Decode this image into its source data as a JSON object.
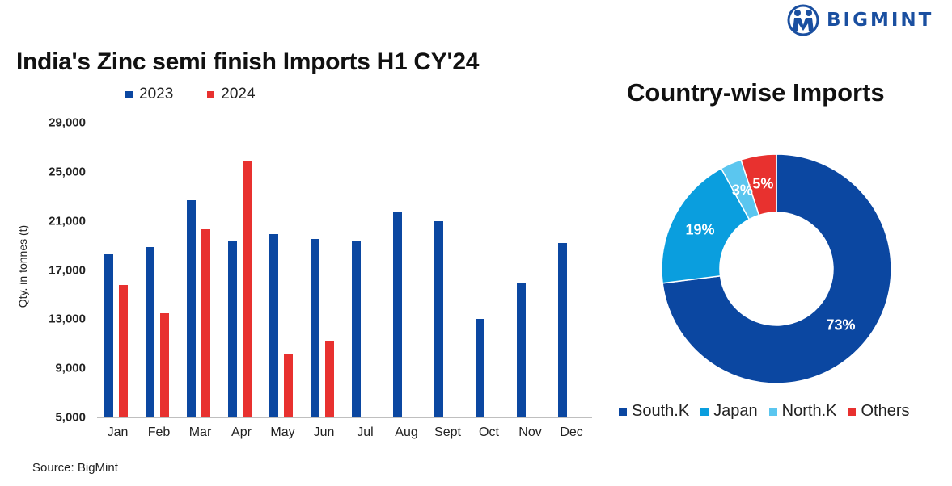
{
  "brand": {
    "name": "BIGMINT",
    "color": "#1a4fa0"
  },
  "bar_chart": {
    "title": "India's Zinc semi finish Imports H1 CY'24",
    "y_axis_title": "Qty. in tonnes (t)",
    "y_ticks": [
      "29,000",
      "25,000",
      "21,000",
      "17,000",
      "13,000",
      "9,000",
      "5,000"
    ],
    "legend": [
      {
        "label": "2023",
        "color": "#0b47a1"
      },
      {
        "label": "2024",
        "color": "#e8312f"
      }
    ],
    "source": "Source: BigMint"
  },
  "pie_chart": {
    "title": "Country-wise Imports",
    "legend": [
      {
        "label": "South.K",
        "color": "#0b47a1"
      },
      {
        "label": "Japan",
        "color": "#0a9ede"
      },
      {
        "label": "North.K",
        "color": "#5bc6ef"
      },
      {
        "label": "Others",
        "color": "#e8312f"
      }
    ],
    "labels": [
      "73%",
      "19%",
      "3%",
      "5%"
    ]
  },
  "chart_data": [
    {
      "type": "bar",
      "title": "India's Zinc semi finish Imports H1 CY'24",
      "xlabel": "",
      "ylabel": "Qty. in tonnes (t)",
      "ylim": [
        5000,
        29000
      ],
      "yticks": [
        5000,
        9000,
        13000,
        17000,
        21000,
        25000,
        29000
      ],
      "grid": false,
      "legend_position": "top",
      "categories": [
        "Jan",
        "Feb",
        "Mar",
        "Apr",
        "May",
        "Jun",
        "Jul",
        "Aug",
        "Sept",
        "Oct",
        "Nov",
        "Dec"
      ],
      "series": [
        {
          "name": "2023",
          "color": "#0b47a1",
          "values": [
            18300,
            18900,
            22700,
            19400,
            19900,
            19500,
            19400,
            21800,
            21000,
            13000,
            15900,
            19200
          ]
        },
        {
          "name": "2024",
          "color": "#e8312f",
          "values": [
            15800,
            13500,
            20300,
            25900,
            10200,
            11200,
            null,
            null,
            null,
            null,
            null,
            null
          ]
        }
      ]
    },
    {
      "type": "pie",
      "subtype": "donut",
      "title": "Country-wise Imports",
      "legend_position": "bottom",
      "categories": [
        "South.K",
        "Japan",
        "North.K",
        "Others"
      ],
      "values": [
        73,
        19,
        3,
        5
      ],
      "labels": [
        "73%",
        "19%",
        "3%",
        "5%"
      ],
      "colors": [
        "#0b47a1",
        "#0a9ede",
        "#5bc6ef",
        "#e8312f"
      ]
    }
  ]
}
